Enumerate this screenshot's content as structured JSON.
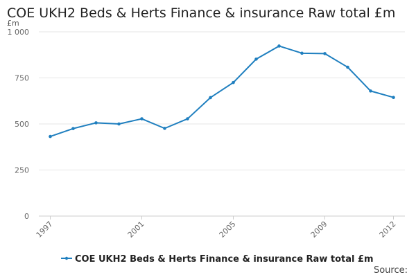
{
  "chart_data": {
    "type": "line",
    "title": "COE UKH2 Beds & Herts Finance & insurance Raw total £m",
    "ylabel": "£m",
    "xlabel": "",
    "x_tick_labels": [
      "1997",
      "2001",
      "2005",
      "2009",
      "2012"
    ],
    "y_tick_labels": [
      "0",
      "250",
      "500",
      "750",
      "1 000"
    ],
    "xlim": [
      1997,
      2012
    ],
    "ylim": [
      0,
      1000
    ],
    "y_ticks": [
      0,
      250,
      500,
      750,
      1000
    ],
    "grid": true,
    "legend_position": "bottom",
    "x": [
      1997,
      1998,
      1999,
      2000,
      2001,
      2002,
      2003,
      2004,
      2005,
      2006,
      2007,
      2008,
      2009,
      2010,
      2011,
      2012
    ],
    "series": [
      {
        "name": "COE UKH2 Beds & Herts Finance & insurance Raw total £m",
        "color": "#1f7fbf",
        "values": [
          432,
          475,
          506,
          500,
          528,
          476,
          528,
          643,
          725,
          852,
          923,
          884,
          882,
          808,
          679,
          644
        ]
      }
    ],
    "source_label": "Source:"
  }
}
